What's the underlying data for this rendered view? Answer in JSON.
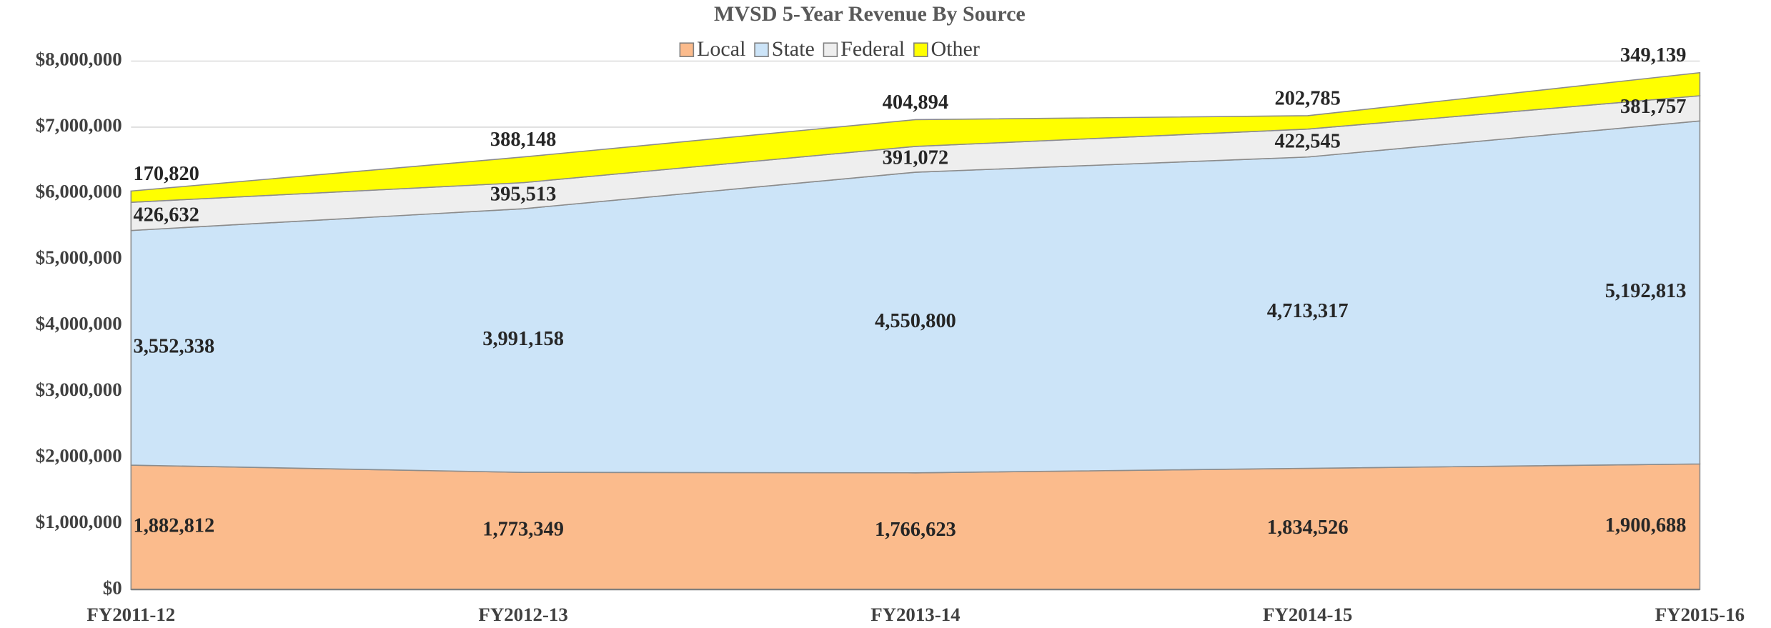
{
  "chart_data": {
    "type": "area",
    "stacked": true,
    "title": "MVSD 5-Year Revenue By Source",
    "categories": [
      "FY2011-12",
      "FY2012-13",
      "FY2013-14",
      "FY2014-15",
      "FY2015-16"
    ],
    "series": [
      {
        "name": "Local",
        "color": "#fbbb8c",
        "values": [
          1882812,
          1773349,
          1766623,
          1834526,
          1900688
        ],
        "value_labels": [
          "1,882,812",
          "1,773,349",
          "1,766,623",
          "1,834,526",
          "1,900,688"
        ]
      },
      {
        "name": "State",
        "color": "#cce4f8",
        "values": [
          3552338,
          3991158,
          4550800,
          4713317,
          5192813
        ],
        "value_labels": [
          "3,552,338",
          "3,991,158",
          "4,550,800",
          "4,713,317",
          "5,192,813"
        ]
      },
      {
        "name": "Federal",
        "color": "#eeeeee",
        "values": [
          426632,
          395513,
          391072,
          422545,
          381757
        ],
        "value_labels": [
          "426,632",
          "395,513",
          "391,072",
          "422,545",
          "381,757"
        ]
      },
      {
        "name": "Other",
        "color": "#ffff00",
        "values": [
          170820,
          388148,
          404894,
          202785,
          349139
        ],
        "value_labels": [
          "170,820",
          "388,148",
          "404,894",
          "202,785",
          "349,139"
        ]
      }
    ],
    "ylim": [
      0,
      8000000
    ],
    "yticks": [
      {
        "value": 0,
        "label": "$0"
      },
      {
        "value": 1000000,
        "label": "$1,000,000"
      },
      {
        "value": 2000000,
        "label": "$2,000,000"
      },
      {
        "value": 3000000,
        "label": "$3,000,000"
      },
      {
        "value": 4000000,
        "label": "$4,000,000"
      },
      {
        "value": 5000000,
        "label": "$5,000,000"
      },
      {
        "value": 6000000,
        "label": "$6,000,000"
      },
      {
        "value": 7000000,
        "label": "$7,000,000"
      },
      {
        "value": 8000000,
        "label": "$8,000,000"
      }
    ],
    "grid": true,
    "legend": "top"
  }
}
